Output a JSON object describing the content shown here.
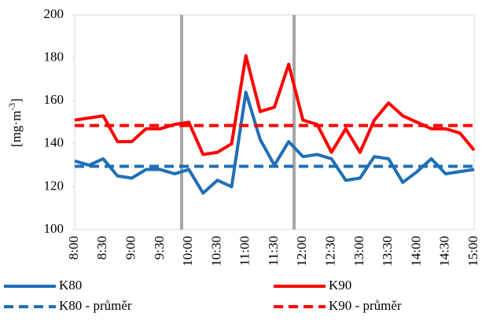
{
  "chart_data": {
    "type": "line",
    "y_label": "[mg·m",
    "y_label_sup": "-3",
    "y_label_end": "]",
    "categories": [
      "8:00",
      null,
      "8:30",
      null,
      "9:00",
      null,
      "9:30",
      null,
      "10:00",
      null,
      "10:30",
      null,
      "11:00",
      null,
      "11:30",
      null,
      "12:00",
      null,
      "12:30",
      null,
      "13:00",
      null,
      "13:30",
      null,
      "14:00",
      null,
      "14:30",
      null,
      "15:00"
    ],
    "series": [
      {
        "name": "K80",
        "color": "#1f6fb5",
        "dashed": false,
        "values": [
          132,
          130,
          133,
          125,
          124,
          128,
          128,
          126,
          128,
          117,
          123,
          120,
          164,
          142,
          130,
          141,
          134,
          135,
          133,
          123,
          124,
          134,
          133,
          122,
          127,
          133,
          126,
          127,
          128
        ]
      },
      {
        "name": "K90",
        "color": "#ff0000",
        "dashed": false,
        "values": [
          151,
          152,
          153,
          141,
          141,
          147,
          147,
          149,
          150,
          135,
          136,
          140,
          181,
          155,
          157,
          177,
          151,
          149,
          136,
          147,
          136,
          151,
          159,
          153,
          150,
          147,
          147,
          145,
          137
        ]
      },
      {
        "name": "K80 - průměr",
        "color": "#1f6fb5",
        "dashed": true,
        "values": [
          129.5,
          129.5,
          129.5,
          129.5,
          129.5,
          129.5,
          129.5,
          129.5,
          129.5,
          129.5,
          129.5,
          129.5,
          129.5,
          129.5,
          129.5,
          129.5,
          129.5,
          129.5,
          129.5,
          129.5,
          129.5,
          129.5,
          129.5,
          129.5,
          129.5,
          129.5,
          129.5,
          129.5,
          129.5
        ]
      },
      {
        "name": "K90 - průměr",
        "color": "#ff0000",
        "dashed": true,
        "values": [
          148.5,
          148.5,
          148.5,
          148.5,
          148.5,
          148.5,
          148.5,
          148.5,
          148.5,
          148.5,
          148.5,
          148.5,
          148.5,
          148.5,
          148.5,
          148.5,
          148.5,
          148.5,
          148.5,
          148.5,
          148.5,
          148.5,
          148.5,
          148.5,
          148.5,
          148.5,
          148.5,
          148.5,
          148.5
        ]
      }
    ],
    "ylim": [
      100,
      200
    ],
    "yticks": [
      100,
      120,
      140,
      160,
      180,
      200
    ]
  }
}
